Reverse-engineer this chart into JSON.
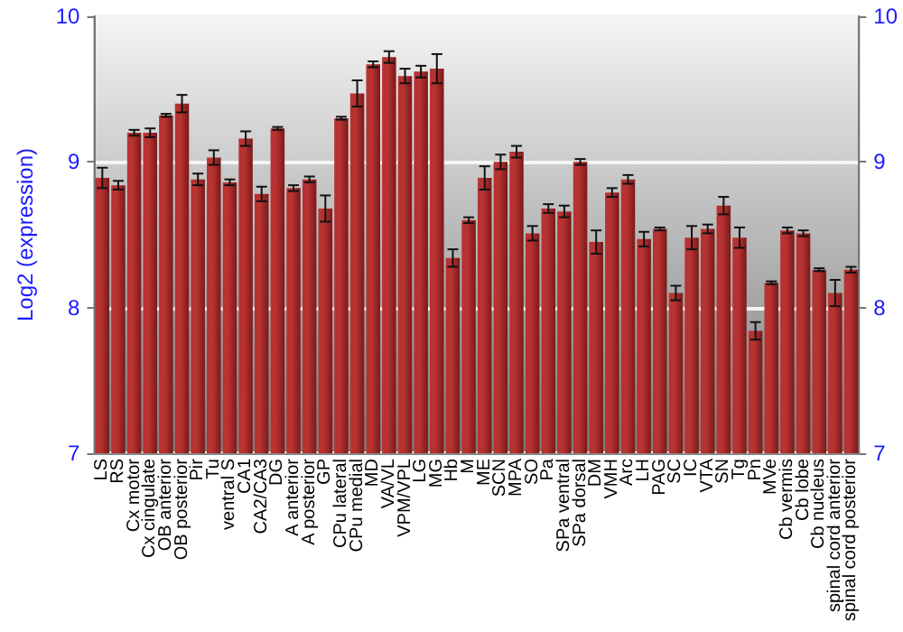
{
  "chart_data": {
    "type": "bar",
    "ylabel": "Log2 (expression)",
    "categories": [
      "LS",
      "RS",
      "Cx motor",
      "Cx cingulate",
      "OB anterior",
      "OB posterior",
      "Pir",
      "Tu",
      "ventral S",
      "CA1",
      "CA2/CA3",
      "DG",
      "A anterior",
      "A posterior",
      "GP",
      "CPu lateral",
      "CPu medial",
      "MD",
      "VA/VL",
      "VPM/VPL",
      "LG",
      "MG",
      "Hb",
      "M",
      "ME",
      "SCN",
      "MPA",
      "SO",
      "Pa",
      "SPa ventral",
      "SPa dorsal",
      "DM",
      "VMH",
      "Arc",
      "LH",
      "PAG",
      "SC",
      "IC",
      "VTA",
      "SN",
      "Tg",
      "Pn",
      "MVe",
      "Cb vermis",
      "Cb lobe",
      "Cb nucleus",
      "spinal cord anterior",
      "spinal cord posterior"
    ],
    "values": [
      8.89,
      8.84,
      9.2,
      9.2,
      9.32,
      9.4,
      8.88,
      9.03,
      8.86,
      9.16,
      8.78,
      9.23,
      8.82,
      8.88,
      8.68,
      9.3,
      9.47,
      9.67,
      9.72,
      9.59,
      9.62,
      9.64,
      8.34,
      8.6,
      8.89,
      9.0,
      9.07,
      8.51,
      8.68,
      8.66,
      9.0,
      8.45,
      8.79,
      8.88,
      8.47,
      8.54,
      8.1,
      8.48,
      8.54,
      8.7,
      8.48,
      7.84,
      8.17,
      8.53,
      8.51,
      8.26,
      8.1,
      8.26
    ],
    "errors": [
      0.07,
      0.03,
      0.02,
      0.03,
      0.01,
      0.06,
      0.04,
      0.05,
      0.02,
      0.05,
      0.05,
      0.01,
      0.02,
      0.02,
      0.09,
      0.01,
      0.09,
      0.02,
      0.04,
      0.05,
      0.04,
      0.1,
      0.06,
      0.02,
      0.08,
      0.05,
      0.04,
      0.05,
      0.03,
      0.04,
      0.02,
      0.08,
      0.03,
      0.03,
      0.05,
      0.01,
      0.05,
      0.08,
      0.03,
      0.06,
      0.07,
      0.06,
      0.01,
      0.02,
      0.02,
      0.01,
      0.09,
      0.02
    ],
    "color": "#b83232",
    "ylim": [
      7,
      10
    ],
    "yticks": [
      7,
      8,
      9,
      10
    ],
    "y2lim": [
      7,
      10
    ],
    "y2ticks": [
      7,
      8,
      9,
      10
    ],
    "grid": "y"
  }
}
